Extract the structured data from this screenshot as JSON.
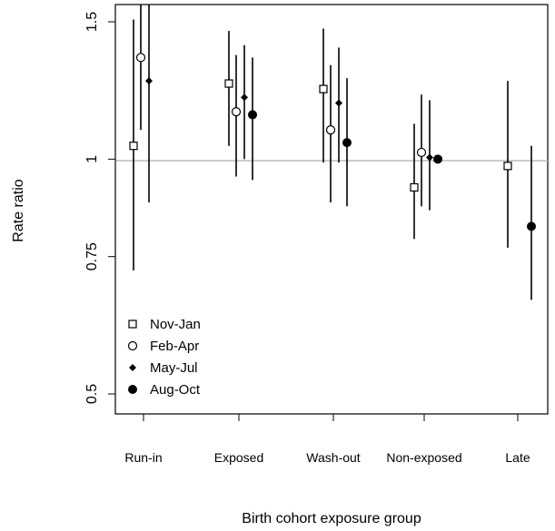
{
  "chart_data": {
    "type": "scatter",
    "subtype": "point-with-error-bars",
    "title": "",
    "xlabel": "Birth cohort exposure group",
    "ylabel": "Rate ratio",
    "categories": [
      "Run-in",
      "Exposed",
      "Wash-out",
      "Non-exposed",
      "Late"
    ],
    "y_scale": "log",
    "ylim": [
      0.5,
      1.5
    ],
    "y_ticks": [
      {
        "value": 0.5,
        "label": "0.5"
      },
      {
        "value": 0.75,
        "label": "0.75"
      },
      {
        "value": 1.0,
        "label": "1"
      },
      {
        "value": 1.5,
        "label": "1.5"
      }
    ],
    "reference_line": {
      "value": 1.0,
      "color": "#bbbbbb"
    },
    "grid": false,
    "legend_position": "bottom-left",
    "series": [
      {
        "name": "Nov-Jan",
        "marker": "open-square",
        "values": [
          1.04,
          1.25,
          1.23,
          0.92,
          0.98
        ],
        "lower": [
          0.72,
          1.04,
          0.99,
          0.79,
          0.77
        ],
        "upper": [
          1.51,
          1.46,
          1.47,
          1.11,
          1.26
        ]
      },
      {
        "name": "Feb-Apr",
        "marker": "open-circle",
        "values": [
          1.35,
          1.15,
          1.09,
          1.02,
          null
        ],
        "lower": [
          1.09,
          0.95,
          0.88,
          0.87,
          null
        ],
        "upper": [
          1.62,
          1.36,
          1.32,
          1.21,
          null
        ]
      },
      {
        "name": "May-Jul",
        "marker": "filled-diamond",
        "values": [
          1.26,
          1.2,
          1.18,
          1.005,
          null
        ],
        "lower": [
          0.88,
          1.0,
          0.99,
          0.86,
          null
        ],
        "upper": [
          1.72,
          1.4,
          1.39,
          1.19,
          null
        ]
      },
      {
        "name": "Aug-Oct",
        "marker": "filled-circle",
        "values": [
          null,
          1.14,
          1.05,
          1.0,
          0.82
        ],
        "lower": [
          null,
          0.94,
          0.87,
          null,
          0.66
        ],
        "upper": [
          null,
          1.35,
          1.27,
          null,
          1.04
        ]
      }
    ]
  }
}
